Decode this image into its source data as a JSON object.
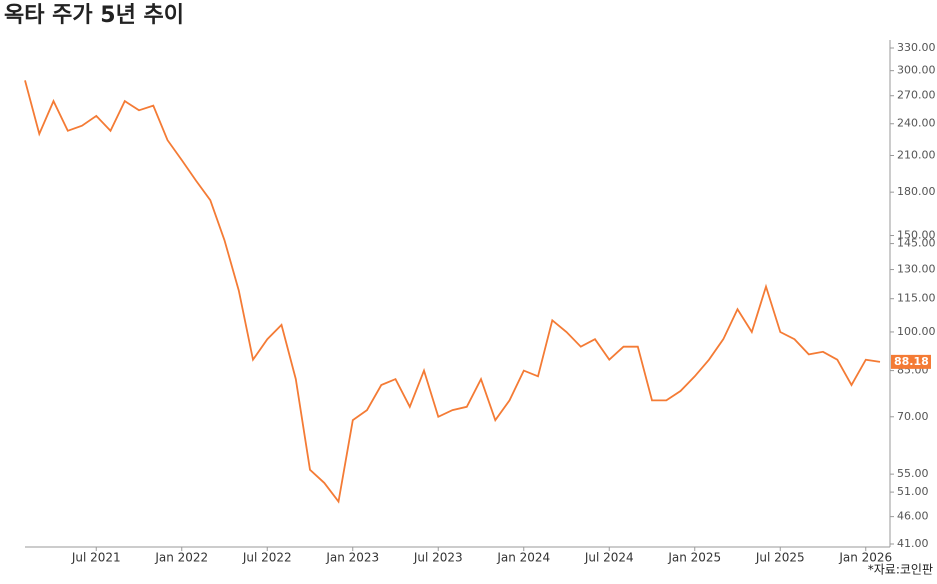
{
  "chart_data": {
    "type": "line",
    "title": "옥타 주가 5년 추이",
    "source": "*자료:코인판",
    "x": [
      "2021-02",
      "2021-03",
      "2021-04",
      "2021-05",
      "2021-06",
      "2021-07",
      "2021-08",
      "2021-09",
      "2021-10",
      "2021-11",
      "2021-12",
      "2022-01",
      "2022-02",
      "2022-03",
      "2022-04",
      "2022-05",
      "2022-06",
      "2022-07",
      "2022-08",
      "2022-09",
      "2022-10",
      "2022-11",
      "2022-12",
      "2023-01",
      "2023-02",
      "2023-03",
      "2023-04",
      "2023-05",
      "2023-06",
      "2023-07",
      "2023-08",
      "2023-09",
      "2023-10",
      "2023-11",
      "2023-12",
      "2024-01",
      "2024-02",
      "2024-03",
      "2024-04",
      "2024-05",
      "2024-06",
      "2024-07",
      "2024-08",
      "2024-09",
      "2024-10",
      "2024-11",
      "2024-12",
      "2025-01",
      "2025-02",
      "2025-03",
      "2025-04",
      "2025-05",
      "2025-06",
      "2025-07",
      "2025-08",
      "2025-09",
      "2025-10",
      "2025-11",
      "2025-12",
      "2026-01",
      "2026-02"
    ],
    "series": [
      {
        "name": "옥타",
        "color": "#f47b35",
        "values": [
          288,
          230,
          264,
          233,
          238,
          248,
          233,
          264,
          254,
          259,
          224,
          206,
          189,
          174,
          147,
          119,
          89,
          97,
          103,
          82,
          56,
          53,
          49,
          69,
          72,
          80,
          82,
          73,
          85,
          70,
          72,
          73,
          82,
          69,
          75,
          85,
          83,
          105,
          100,
          94,
          97,
          89,
          94,
          94,
          75,
          75,
          78,
          83,
          89,
          97,
          110,
          100,
          121,
          100,
          97,
          91,
          92,
          89,
          80,
          89,
          88.18
        ]
      }
    ],
    "xlim": [
      "2021-02",
      "2026-02"
    ],
    "xticks": [
      {
        "value": "2021-07",
        "label": "Jul 2021"
      },
      {
        "value": "2022-01",
        "label": "Jan 2022"
      },
      {
        "value": "2022-07",
        "label": "Jul 2022"
      },
      {
        "value": "2023-01",
        "label": "Jan 2023"
      },
      {
        "value": "2023-07",
        "label": "Jul 2023"
      },
      {
        "value": "2024-01",
        "label": "Jan 2024"
      },
      {
        "value": "2024-07",
        "label": "Jul 2024"
      },
      {
        "value": "2025-01",
        "label": "Jan 2025"
      },
      {
        "value": "2025-07",
        "label": "Jul 2025"
      },
      {
        "value": "2026-01",
        "label": "Jan 2026"
      }
    ],
    "ylim": [
      41,
      330
    ],
    "log_scale": true,
    "yticks": [
      {
        "value": 41,
        "label": "41.00"
      },
      {
        "value": 46,
        "label": "46.00"
      },
      {
        "value": 51,
        "label": "51.00"
      },
      {
        "value": 55,
        "label": "55.00"
      },
      {
        "value": 70,
        "label": "70.00"
      },
      {
        "value": 85,
        "label": "85.00"
      },
      {
        "value": 100,
        "label": "100.00"
      },
      {
        "value": 115,
        "label": "115.00"
      },
      {
        "value": 130,
        "label": "130.00"
      },
      {
        "value": 145,
        "label": "145.00"
      },
      {
        "value": 150,
        "label": "150.00"
      },
      {
        "value": 180,
        "label": "180.00"
      },
      {
        "value": 210,
        "label": "210.00"
      },
      {
        "value": 240,
        "label": "240.00"
      },
      {
        "value": 270,
        "label": "270.00"
      },
      {
        "value": 300,
        "label": "300.00"
      },
      {
        "value": 330,
        "label": "330.00"
      }
    ]
  }
}
